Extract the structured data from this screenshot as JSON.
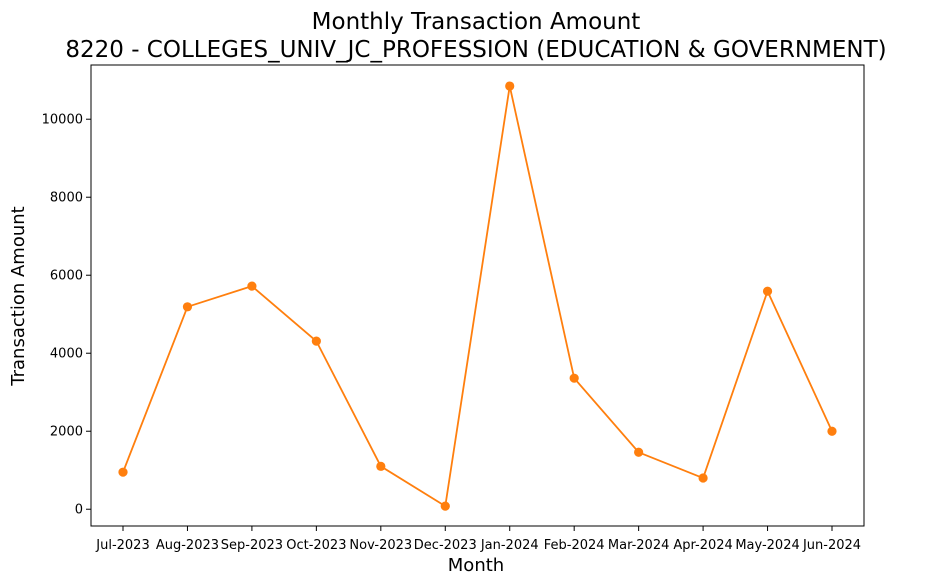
{
  "chart_data": {
    "type": "line",
    "title": "Monthly Transaction Amount",
    "subtitle": "8220 - COLLEGES_UNIV_JC_PROFESSION (EDUCATION & GOVERNMENT)",
    "xlabel": "Month",
    "ylabel": "Transaction Amount",
    "categories": [
      "Jul-2023",
      "Aug-2023",
      "Sep-2023",
      "Oct-2023",
      "Nov-2023",
      "Dec-2023",
      "Jan-2024",
      "Feb-2024",
      "Mar-2024",
      "Apr-2024",
      "May-2024",
      "Jun-2024"
    ],
    "series": [
      {
        "values": [
          950,
          5190,
          5720,
          4310,
          1100,
          80,
          10850,
          3360,
          1460,
          800,
          5590,
          2000
        ],
        "color": "#ff7f0e"
      }
    ],
    "ylim": [
      -430,
      11390
    ],
    "yticks": [
      0,
      2000,
      4000,
      6000,
      8000,
      10000
    ],
    "grid": false,
    "legend": "none"
  }
}
